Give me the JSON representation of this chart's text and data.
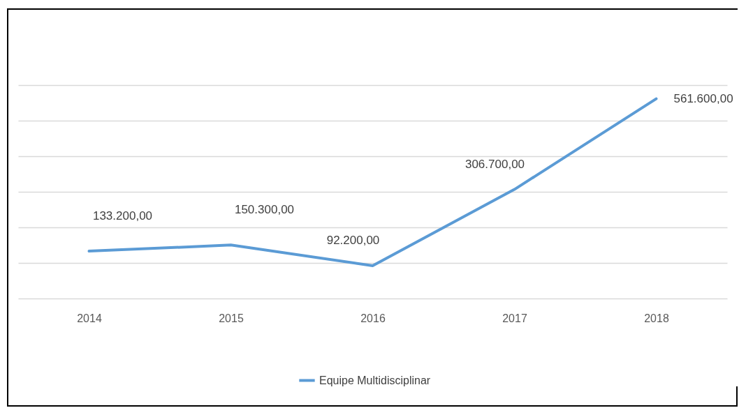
{
  "chart_data": {
    "type": "line",
    "categories": [
      "2014",
      "2015",
      "2016",
      "2017",
      "2018"
    ],
    "series": [
      {
        "name": "Equipe Multidisciplinar",
        "color": "#5b9bd5",
        "values": [
          133200,
          150300,
          92200,
          306700,
          561600
        ],
        "value_labels": [
          "133.200,00",
          "150.300,00",
          "92.200,00",
          "306.700,00",
          "561.600,00"
        ]
      }
    ],
    "ylim": [
      0,
      600000
    ],
    "yticks": [
      {
        "value": 0,
        "label": null
      },
      {
        "value": 100000,
        "label": null
      },
      {
        "value": 200000,
        "label": null
      },
      {
        "value": 300000,
        "label": null
      },
      {
        "value": 400000,
        "label": null
      },
      {
        "value": 500000,
        "label": null
      },
      {
        "value": 600000,
        "label": null
      }
    ],
    "tick_labels": "x",
    "grid": "y",
    "legend": "bottom",
    "marker": "none",
    "line_style": "solid"
  }
}
